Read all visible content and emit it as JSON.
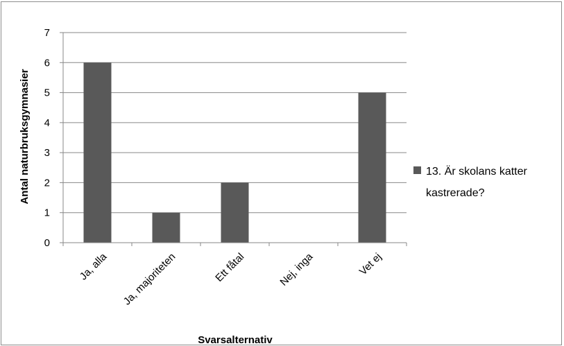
{
  "chart_data": {
    "type": "bar",
    "categories": [
      "Ja, alla",
      "Ja, majoriteten",
      "Ett fåtal",
      "Nej, inga",
      "Vet ej"
    ],
    "series": [
      {
        "name": "13. Är skolans katter kastrerade?",
        "values": [
          6,
          1,
          2,
          0,
          5
        ],
        "color": "#595959"
      }
    ],
    "xlabel": "Svarsalternativ",
    "ylabel": "Antal naturbruksgymnasier",
    "ylim": [
      0,
      7
    ],
    "yticks": [
      "0",
      "1",
      "2",
      "3",
      "4",
      "5",
      "6",
      "7"
    ],
    "grid": true,
    "legend_position": "right",
    "legend_lines": [
      "13. Är skolans katter",
      "kastrerade?"
    ]
  }
}
